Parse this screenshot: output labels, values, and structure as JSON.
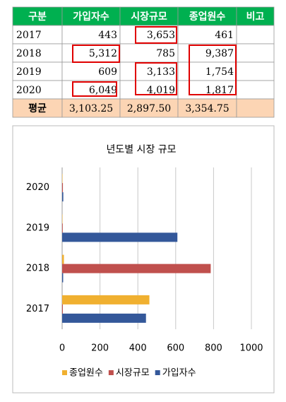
{
  "table": {
    "header": [
      "구분",
      "가입자수",
      "시장규모",
      "종업원수",
      "비고"
    ],
    "rows": [
      [
        "2017",
        "443",
        "3,653",
        "461"
      ],
      [
        "2018",
        "5,312",
        "785",
        "9,387"
      ],
      [
        "2019",
        "609",
        "3,133",
        "1,754"
      ],
      [
        "2020",
        "6,049",
        "4,019",
        "1,817"
      ]
    ],
    "average": [
      "평균",
      "3,103.25",
      "2,897.50",
      "3,354.75"
    ]
  },
  "chart_data": {
    "type": "hbar",
    "title": "년도별 시장 규모",
    "categories": [
      "2017",
      "2018",
      "2019",
      "2020"
    ],
    "series": [
      {
        "name": "종업원수",
        "color": "#f0b030",
        "values": [
          461,
          9.387,
          1.754,
          1.817
        ]
      },
      {
        "name": "시장규모",
        "color": "#c0504d",
        "values": [
          3.653,
          785,
          3.133,
          4.019
        ]
      },
      {
        "name": "가입자수",
        "color": "#34589a",
        "values": [
          443,
          5.312,
          609,
          6.049
        ]
      }
    ],
    "xlim": [
      0,
      1000
    ],
    "xticks": [
      0,
      200,
      400,
      600,
      800,
      1000
    ],
    "grid": true,
    "legend": "bottom"
  }
}
